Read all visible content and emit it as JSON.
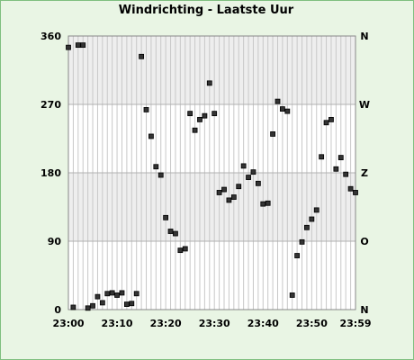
{
  "chart_data": {
    "type": "scatter",
    "title": "Windrichting - Laatste Uur",
    "xlabel": "",
    "ylabel": "",
    "xlim_minutes": [
      0,
      59
    ],
    "x_tick_labels": [
      "23:00",
      "23:10",
      "23:20",
      "23:30",
      "23:40",
      "23:50",
      "23:59"
    ],
    "x_tick_minutes": [
      0,
      10,
      20,
      30,
      40,
      50,
      59
    ],
    "ylim": [
      0,
      360
    ],
    "y_ticks": [
      0,
      90,
      180,
      270,
      360
    ],
    "y_tick_labels": [
      "0",
      "90",
      "180",
      "270",
      "360"
    ],
    "y_right_labels": [
      "N",
      "O",
      "Z",
      "W",
      "N"
    ],
    "grid": "vertical lines each minute, shaded bands 90-180 and 270-360",
    "series": [
      {
        "marker": "square",
        "x": [
          "23:00",
          "23:01",
          "23:02",
          "23:03",
          "23:04",
          "23:05",
          "23:06",
          "23:07",
          "23:08",
          "23:09",
          "23:10",
          "23:11",
          "23:12",
          "23:13",
          "23:14",
          "23:15",
          "23:16",
          "23:17",
          "23:18",
          "23:19",
          "23:20",
          "23:21",
          "23:22",
          "23:23",
          "23:24",
          "23:25",
          "23:26",
          "23:27",
          "23:28",
          "23:29",
          "23:30",
          "23:31",
          "23:32",
          "23:33",
          "23:34",
          "23:35",
          "23:36",
          "23:37",
          "23:38",
          "23:39",
          "23:40",
          "23:41",
          "23:42",
          "23:43",
          "23:44",
          "23:45",
          "23:46",
          "23:47",
          "23:48",
          "23:49",
          "23:50",
          "23:51",
          "23:52",
          "23:53",
          "23:54",
          "23:55",
          "23:56",
          "23:57",
          "23:58",
          "23:59"
        ],
        "values": [
          345,
          3,
          348,
          348,
          2,
          5,
          17,
          9,
          21,
          22,
          19,
          22,
          7,
          8,
          21,
          333,
          263,
          228,
          188,
          177,
          121,
          103,
          100,
          78,
          80,
          258,
          236,
          250,
          255,
          298,
          258,
          154,
          158,
          144,
          148,
          162,
          189,
          174,
          181,
          166,
          139,
          140,
          231,
          274,
          264,
          261,
          19,
          71,
          89,
          108,
          119,
          131,
          201,
          246,
          250,
          185,
          200,
          178,
          159,
          154
        ]
      }
    ]
  }
}
